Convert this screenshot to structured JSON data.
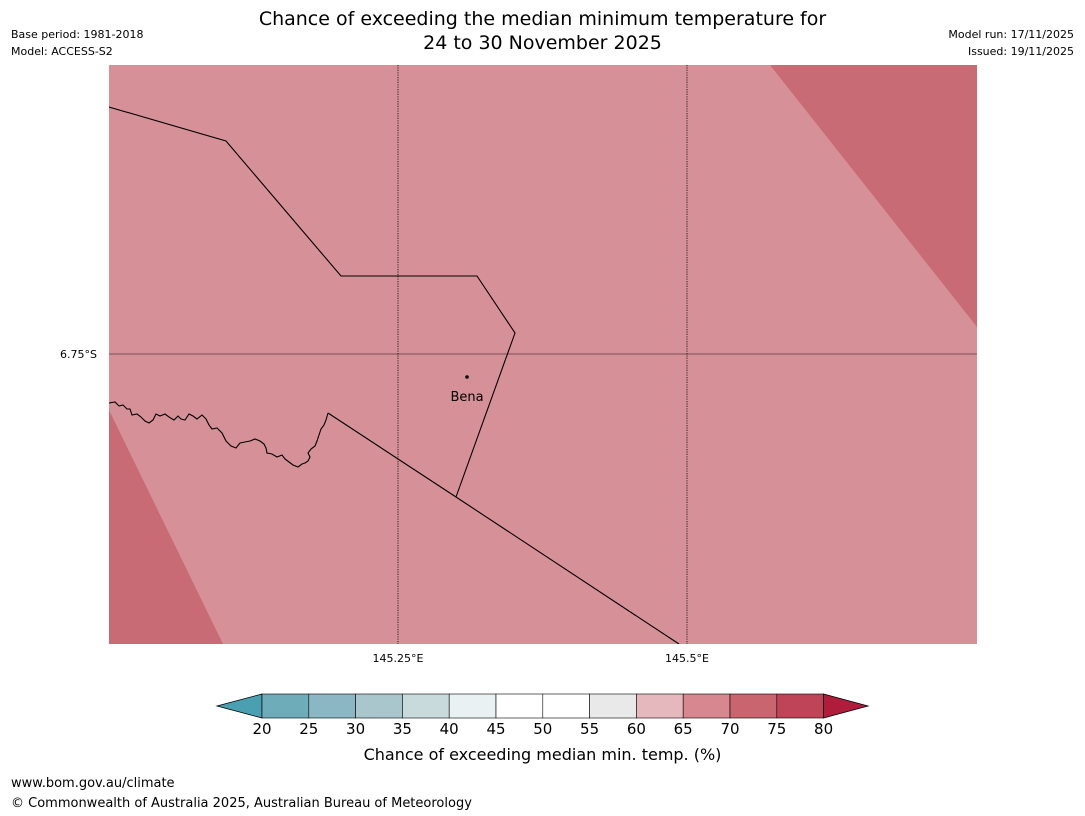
{
  "title": {
    "line1": "Chance of exceeding the median minimum temperature for",
    "line2": "24 to 30 November 2025"
  },
  "meta": {
    "base_period": "Base period: 1981-2018",
    "model": "Model: ACCESS-S2",
    "model_run": "Model run: 17/11/2025",
    "issued": "Issued: 19/11/2025"
  },
  "map": {
    "latitude_label": "6.75°S",
    "longitude_labels": [
      "145.25°E",
      "145.5°E"
    ],
    "place": "Bena",
    "colors": {
      "band_65_70": "#d69198",
      "band_70_75": "#c86b74",
      "grid": "#000000"
    }
  },
  "colorbar": {
    "ticks": [
      "20",
      "25",
      "30",
      "35",
      "40",
      "45",
      "50",
      "55",
      "60",
      "65",
      "70",
      "75",
      "80"
    ],
    "under_color": "#4a9fb0",
    "over_color": "#b01c3c",
    "colors": [
      "#6eacb9",
      "#8ab7c3",
      "#a8c6cc",
      "#c9dadd",
      "#e9f1f3",
      "#ffffff",
      "#ffffff",
      "#e9e9e9",
      "#e4b8bc",
      "#d6878f",
      "#c9656f",
      "#c04457"
    ],
    "label": "Chance of exceeding median min. temp. (%)"
  },
  "footer": {
    "url": "www.bom.gov.au/climate",
    "copyright": "© Commonwealth of Australia 2025, Australian Bureau of Meteorology"
  }
}
